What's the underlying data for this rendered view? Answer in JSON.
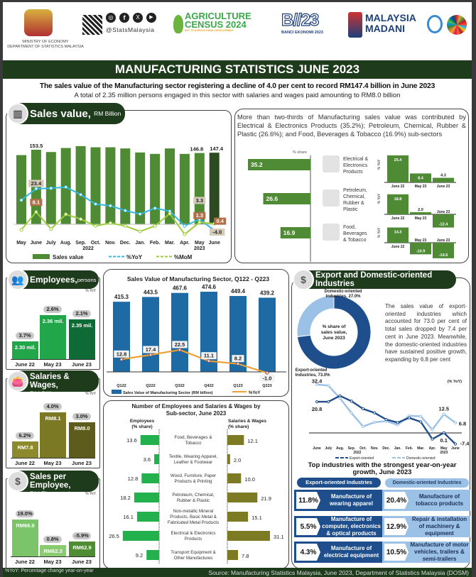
{
  "header": {
    "ministry_line1": "MINISTRY OF ECONOMY",
    "ministry_line2": "DEPARTMENT OF STATISTICS MALAYSIA",
    "social_handle": "@StatsMalaysia",
    "census_line1": "AGRICULTURE",
    "census_line2": "CENSUS 2024",
    "census_tagline": "KEY TO AGRICULTURAL DEVELOPMENT",
    "banci_logo": "B//23",
    "banci_label": "BANCI EKONOMI 2023",
    "madani_line1": "MALAYSIA",
    "madani_line2": "MADANI",
    "title": "MANUFACTURING STATISTICS JUNE 2023",
    "headline": "The sales value of the Manufacturing sector registering a decline of 4.0 per cent to record RM147.4 billion in June 2023",
    "subheadline": "A total of  2.35 million persons engaged in this sector with salaries and wages paid amounting to RM8.0 billion"
  },
  "sales_section": {
    "title": "Sales value,",
    "unit": "RM Billion",
    "year_2022": "2022",
    "year_2023": "2023"
  },
  "subsector_section": {
    "text": "More than two-thirds of Manufacturing sales value was contributed by Electrical & Electronics Products (35.2%); Petroleum, Chemical, Rubber & Plastic (26.6%); and Food, Beverages & Tobacco (16.9%) sub-sectors",
    "share_label": "% share",
    "yoy_label": "% YoY"
  },
  "employees": {
    "title": "Employees,",
    "unit": "persons",
    "yoy_note": "% YoY",
    "cats": [
      "June 22",
      "May 23",
      "June 23"
    ],
    "values": [
      "2.30 mil.",
      "2.36 mil.",
      "2.35 mil."
    ],
    "yoy": [
      "3.7%",
      "2.6%",
      "2.1%"
    ],
    "levels": [
      2.3,
      2.36,
      2.35
    ]
  },
  "salaries": {
    "title": "Salaries & Wages,",
    "unit": "RM Billion",
    "yoy_note": "% YoY",
    "cats": [
      "June 22",
      "May 23",
      "June 23"
    ],
    "values": [
      "RM7.8",
      "RM8.1",
      "RM8.0"
    ],
    "yoy": [
      "6.2%",
      "4.0%",
      "3.0%"
    ],
    "levels": [
      7.8,
      8.1,
      8.0
    ]
  },
  "sales_per_employee": {
    "title": "Sales per Employee,",
    "unit": "RM Thousand",
    "yoy_note": "% YoY",
    "cats": [
      "June 22",
      "May 23",
      "June 23"
    ],
    "values": [
      "RM66.8",
      "RM62.3",
      "RM62.9"
    ],
    "yoy": [
      "19.0%",
      "0.8%",
      "-5.9%"
    ],
    "levels": [
      66.8,
      62.3,
      62.9
    ]
  },
  "export_section": {
    "title": "Export and Domestic-oriented Industries",
    "donut_center": "% share of sales value, June 2023",
    "domestic_label": "Domestic-oriented Industries, 27.0%",
    "export_label": "Export-oriented Industries, 73.0%",
    "text": "The sales value of export-oriented industries which accounted for 73.0 per cent of total sales dropped by 7.4 per cent in June 2023. Meanwhile, the domestic-oriented industries have sustained positive growth, expanding by 6.8 per cent",
    "yoy_note": "(% YoY)",
    "top_title": "Top industries with the strongest year-on-year growth, June 2023",
    "export_pill": "Export-oriented Industries",
    "domestic_pill": "Domestic-oriented Industries",
    "export_top": [
      {
        "pct": "11.8%",
        "name": "Manufacture of wearing apparel"
      },
      {
        "pct": "5.5%",
        "name": "Manufacture of computer, electronics & optical products"
      },
      {
        "pct": "4.3%",
        "name": "Manufacture of electrical equipment"
      }
    ],
    "domestic_top": [
      {
        "pct": "20.4%",
        "name": "Manufacture of tobacco products"
      },
      {
        "pct": "12.9%",
        "name": "Repair & installation of machinery & equipment"
      },
      {
        "pct": "10.5%",
        "name": "Manufacture of motor vehicles, trailers & semi-trailers"
      }
    ]
  },
  "footer": {
    "note": "%YoY: Percentage change year-on-year",
    "source": "Source: Manufacturing Statistics Malaysia, June 2023, Department of Statistics Malaysia (DOSM)"
  },
  "colors": {
    "dark_green": "#1e3b1c",
    "bar_green": "#4f8a34",
    "yoy_blue": "#35b8e0",
    "mom_green": "#9ccc3c",
    "export_blue": "#1f4e8c",
    "domestic_blue": "#9cc1e6",
    "quarter_bar": "#1d6aa5",
    "quarter_line": "#f0a030"
  },
  "chart_data": [
    {
      "type": "bar+line",
      "title": "Sales value, RM Billion",
      "categories": [
        "May",
        "June",
        "July",
        "Aug.",
        "Sep.",
        "Oct.",
        "Nov.",
        "Dec.",
        "Jan.",
        "Feb.",
        "Mar.",
        "Apr.",
        "May",
        "June"
      ],
      "series": [
        {
          "name": "Sales value",
          "type": "bar",
          "values": [
            142.5,
            153.5,
            148.8,
            157.1,
            161.0,
            158.6,
            158.6,
            156.2,
            147.9,
            145.0,
            156.2,
            145.0,
            146.8,
            147.4
          ],
          "labeled": [
            1,
            12,
            13
          ]
        },
        {
          "name": "%YoY",
          "type": "line",
          "values": [
            15.9,
            23.4,
            23.7,
            24.5,
            19.5,
            13.3,
            12.2,
            9.0,
            6.7,
            10.6,
            8.6,
            -1.1,
            3.3,
            -4.0
          ],
          "labeled": [
            1,
            12,
            13
          ]
        },
        {
          "name": "%MoM",
          "type": "line",
          "values": [
            -3.6,
            8.1,
            -3.1,
            6.6,
            3.4,
            -1.1,
            0.8,
            -1.1,
            -4.7,
            -1.1,
            7.0,
            -6.6,
            1.3,
            0.4
          ],
          "labeled": [
            1,
            12,
            13
          ]
        }
      ],
      "legend": "bottom"
    },
    {
      "type": "bar",
      "title": "% share",
      "categories": [
        "Electrical & Electronics Products",
        "Petroleum, Chemical, Rubber & Plastic",
        "Food, Beverages & Tobacco"
      ],
      "values": [
        35.2,
        26.6,
        16.9
      ]
    },
    {
      "type": "bar",
      "ylabel": "% YoY",
      "groups": [
        {
          "name": "Electrical & Electronics Products",
          "categories": [
            "June 22",
            "May 23",
            "June 23"
          ],
          "values": [
            25.4,
            8.4,
            4.3
          ]
        },
        {
          "name": "Petroleum, Chemical, Rubber & Plastic",
          "categories": [
            "June 22",
            "May 23",
            "June 23"
          ],
          "values": [
            18.8,
            2.0,
            -12.4
          ]
        },
        {
          "name": "Food, Beverages & Tobacco",
          "categories": [
            "June 22",
            "May 23",
            "June 23"
          ],
          "values": [
            14.3,
            -10.9,
            -14.6
          ]
        }
      ]
    },
    {
      "type": "bar+line",
      "title": "Sales Value of Manufacturing Sector, Q122 - Q223",
      "categories": [
        "Q122",
        "Q222",
        "Q322",
        "Q422",
        "Q123",
        "Q223"
      ],
      "series": [
        {
          "name": "Sales Value of Manufacturing Sector (RM billion)",
          "values": [
            415.3,
            443.5,
            467.6,
            474.6,
            449.4,
            439.2
          ]
        },
        {
          "name": "%YoY",
          "values": [
            12.8,
            17.4,
            22.5,
            11.1,
            8.2,
            -1.0
          ]
        }
      ],
      "legend": "bottom"
    },
    {
      "type": "bar",
      "title": "Number of Employees and Salaries & Wages by Sub-sector, June 2023",
      "left_label": "Employees (% share)",
      "right_label": "Salaries & Wages (% share)",
      "categories": [
        "Food, Beverages & Tobacco",
        "Textile, Wearing Apparel, Leather & Footwear",
        "Wood, Furniture, Paper Products & Printing",
        "Petroleum, Chemical, Rubber & Plastic",
        "Non-metallic Mineral Products, Basic Metal & Fabricated Metal Products",
        "Electrical & Electronics Products",
        "Transport Equipment & Other Manufactures"
      ],
      "employees": [
        13.6,
        3.6,
        12.8,
        18.2,
        16.1,
        26.5,
        9.2
      ],
      "salaries": [
        12.1,
        2.0,
        10.0,
        21.9,
        15.1,
        31.1,
        7.8
      ]
    },
    {
      "type": "pie",
      "series": [
        {
          "name": "Export-oriented",
          "value": 73.0
        },
        {
          "name": "Domestic-oriented",
          "value": 27.0
        }
      ]
    },
    {
      "type": "line",
      "categories": [
        "June",
        "July",
        "Aug.",
        "Sep.",
        "Oct.",
        "Nov.",
        "Dec.",
        "Jan.",
        "Feb.",
        "Mar.",
        "Apr.",
        "May",
        "June"
      ],
      "years": [
        "2022",
        "2023"
      ],
      "series": [
        {
          "name": "Export-oriented",
          "values": [
            20.8,
            20.8,
            24.8,
            21.2,
            16.1,
            13.4,
            9.0,
            6.9,
            10.1,
            7.4,
            -4.1,
            0.1,
            -7.4
          ],
          "labeled": [
            0,
            11,
            12
          ]
        },
        {
          "name": "Domestic-oriented",
          "values": [
            32.4,
            31.6,
            23.2,
            13.3,
            4.3,
            7.1,
            7.9,
            5.4,
            11.4,
            11.1,
            2.2,
            12.5,
            6.8
          ],
          "labeled": [
            0,
            11,
            12
          ]
        }
      ],
      "legend": "bottom"
    }
  ]
}
